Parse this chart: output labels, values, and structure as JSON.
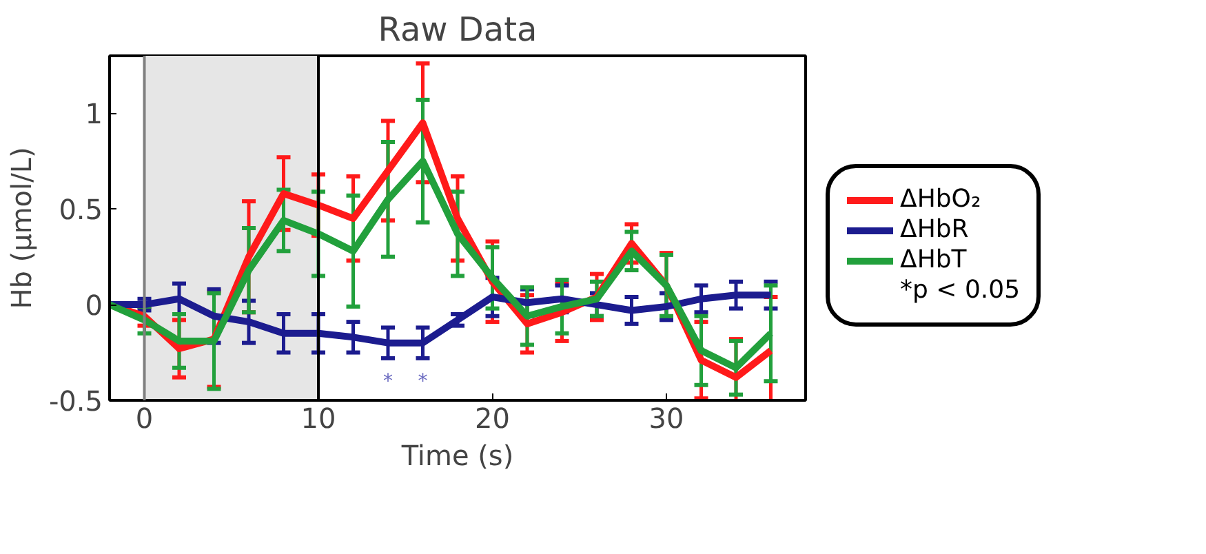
{
  "chart_data": {
    "type": "line",
    "title": "Raw Data",
    "xlabel": "Time (s)",
    "ylabel": "Hb (μmol/L)",
    "x": [
      -2,
      0,
      2,
      4,
      6,
      8,
      10,
      12,
      14,
      16,
      18,
      20,
      22,
      24,
      26,
      28,
      30,
      32,
      34,
      36
    ],
    "series": [
      {
        "name": "ΔHbO₂",
        "color": "#ff1a1a",
        "values": [
          0,
          -0.06,
          -0.23,
          -0.18,
          0.25,
          0.58,
          0.52,
          0.45,
          0.7,
          0.95,
          0.45,
          0.12,
          -0.1,
          -0.04,
          0.04,
          0.32,
          0.1,
          -0.29,
          -0.38,
          -0.24
        ],
        "errors": [
          null,
          0.05,
          0.15,
          0.25,
          0.29,
          0.19,
          0.16,
          0.22,
          0.26,
          0.31,
          0.22,
          0.21,
          0.15,
          0.15,
          0.12,
          0.1,
          0.17,
          0.2,
          0.2,
          0.28
        ]
      },
      {
        "name": "ΔHbR",
        "color": "#1c1c8f",
        "values": [
          0,
          0,
          0.03,
          -0.06,
          -0.09,
          -0.15,
          -0.15,
          -0.17,
          -0.2,
          -0.2,
          -0.08,
          0.04,
          0.01,
          0.03,
          0,
          -0.03,
          -0.01,
          0.03,
          0.05,
          0.05
        ],
        "errors": [
          null,
          0.03,
          0.08,
          0.14,
          0.11,
          0.1,
          0.1,
          0.08,
          0.08,
          0.08,
          0.03,
          0.1,
          0.07,
          0.07,
          0.06,
          0.07,
          0.07,
          0.07,
          0.07,
          0.07
        ]
      },
      {
        "name": "ΔHbT",
        "color": "#22a03c",
        "values": [
          0,
          -0.08,
          -0.19,
          -0.19,
          0.18,
          0.44,
          0.37,
          0.28,
          0.55,
          0.75,
          0.37,
          0.14,
          -0.06,
          -0.01,
          0.03,
          0.28,
          0.1,
          -0.24,
          -0.33,
          -0.15
        ],
        "errors": [
          null,
          0.07,
          0.14,
          0.25,
          0.22,
          0.16,
          0.22,
          0.29,
          0.3,
          0.32,
          0.22,
          0.16,
          0.15,
          0.14,
          0.09,
          0.1,
          0.16,
          0.18,
          0.14,
          0.25
        ]
      }
    ],
    "xlim": [
      -2,
      38
    ],
    "ylim": [
      -0.5,
      1.3
    ],
    "xticks": [
      0,
      10,
      20,
      30
    ],
    "yticks": [
      -0.5,
      0,
      0.5,
      1
    ],
    "bands": [
      {
        "axis": "x",
        "from": 0,
        "to": 10,
        "color": "#e6e6e6"
      }
    ],
    "ref_lines": [
      {
        "axis": "x",
        "value": 0,
        "color": "#808080"
      },
      {
        "axis": "x",
        "value": 10,
        "color": "#000000"
      }
    ],
    "annotations": [
      {
        "text": "*",
        "x": 14,
        "y": -0.2
      },
      {
        "text": "*",
        "x": 16,
        "y": -0.2
      },
      "*p < 0.05"
    ],
    "grid": false,
    "legend": "right",
    "marker": "none",
    "line_style": "solid"
  }
}
